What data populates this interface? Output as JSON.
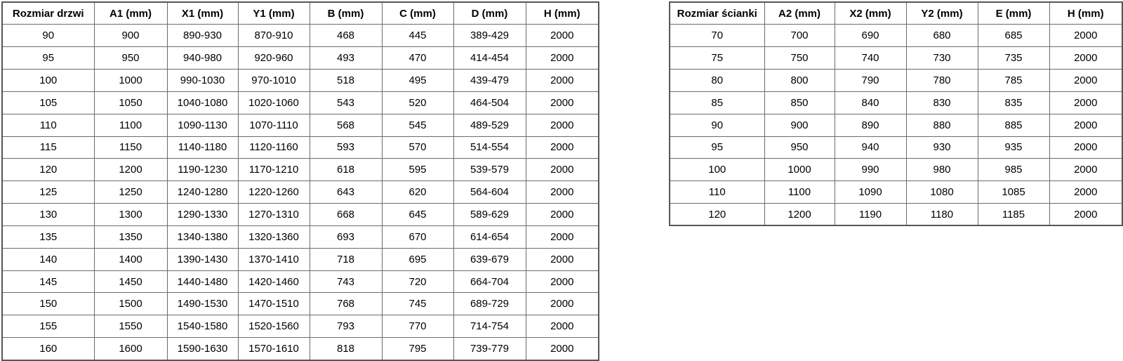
{
  "colors": {
    "background": "#ffffff",
    "border_inner": "#6b6b6b",
    "border_outer": "#565656",
    "text": "#000000"
  },
  "tables": {
    "door": {
      "title": "Rozmiar drzwi",
      "headers": [
        "Rozmiar drzwi",
        "A1 (mm)",
        "X1 (mm)",
        "Y1 (mm)",
        "B (mm)",
        "C (mm)",
        "D (mm)",
        "H (mm)"
      ],
      "rows": [
        [
          "90",
          "900",
          "890-930",
          "870-910",
          "468",
          "445",
          "389-429",
          "2000"
        ],
        [
          "95",
          "950",
          "940-980",
          "920-960",
          "493",
          "470",
          "414-454",
          "2000"
        ],
        [
          "100",
          "1000",
          "990-1030",
          "970-1010",
          "518",
          "495",
          "439-479",
          "2000"
        ],
        [
          "105",
          "1050",
          "1040-1080",
          "1020-1060",
          "543",
          "520",
          "464-504",
          "2000"
        ],
        [
          "110",
          "1100",
          "1090-1130",
          "1070-1110",
          "568",
          "545",
          "489-529",
          "2000"
        ],
        [
          "115",
          "1150",
          "1140-1180",
          "1120-1160",
          "593",
          "570",
          "514-554",
          "2000"
        ],
        [
          "120",
          "1200",
          "1190-1230",
          "1170-1210",
          "618",
          "595",
          "539-579",
          "2000"
        ],
        [
          "125",
          "1250",
          "1240-1280",
          "1220-1260",
          "643",
          "620",
          "564-604",
          "2000"
        ],
        [
          "130",
          "1300",
          "1290-1330",
          "1270-1310",
          "668",
          "645",
          "589-629",
          "2000"
        ],
        [
          "135",
          "1350",
          "1340-1380",
          "1320-1360",
          "693",
          "670",
          "614-654",
          "2000"
        ],
        [
          "140",
          "1400",
          "1390-1430",
          "1370-1410",
          "718",
          "695",
          "639-679",
          "2000"
        ],
        [
          "145",
          "1450",
          "1440-1480",
          "1420-1460",
          "743",
          "720",
          "664-704",
          "2000"
        ],
        [
          "150",
          "1500",
          "1490-1530",
          "1470-1510",
          "768",
          "745",
          "689-729",
          "2000"
        ],
        [
          "155",
          "1550",
          "1540-1580",
          "1520-1560",
          "793",
          "770",
          "714-754",
          "2000"
        ],
        [
          "160",
          "1600",
          "1590-1630",
          "1570-1610",
          "818",
          "795",
          "739-779",
          "2000"
        ]
      ]
    },
    "wall": {
      "title": "Rozmiar ścianki",
      "headers": [
        "Rozmiar ścianki",
        "A2 (mm)",
        "X2 (mm)",
        "Y2 (mm)",
        "E (mm)",
        "H (mm)"
      ],
      "rows": [
        [
          "70",
          "700",
          "690",
          "680",
          "685",
          "2000"
        ],
        [
          "75",
          "750",
          "740",
          "730",
          "735",
          "2000"
        ],
        [
          "80",
          "800",
          "790",
          "780",
          "785",
          "2000"
        ],
        [
          "85",
          "850",
          "840",
          "830",
          "835",
          "2000"
        ],
        [
          "90",
          "900",
          "890",
          "880",
          "885",
          "2000"
        ],
        [
          "95",
          "950",
          "940",
          "930",
          "935",
          "2000"
        ],
        [
          "100",
          "1000",
          "990",
          "980",
          "985",
          "2000"
        ],
        [
          "110",
          "1100",
          "1090",
          "1080",
          "1085",
          "2000"
        ],
        [
          "120",
          "1200",
          "1190",
          "1180",
          "1185",
          "2000"
        ]
      ]
    }
  }
}
